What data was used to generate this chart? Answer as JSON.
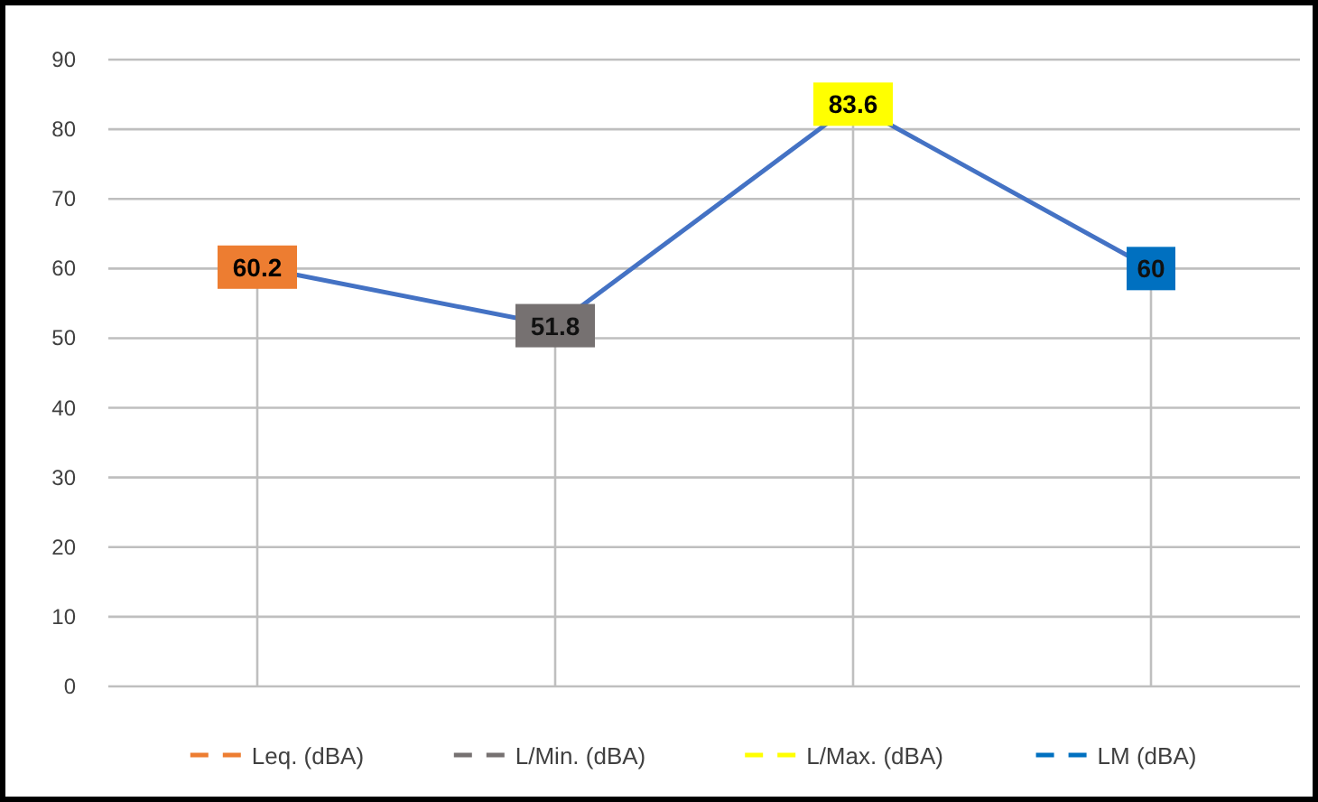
{
  "chart_data": {
    "type": "line",
    "categories": [
      null,
      null,
      null,
      null
    ],
    "ylim": [
      0,
      90
    ],
    "yticks": [
      0,
      10,
      20,
      30,
      40,
      50,
      60,
      70,
      80,
      90
    ],
    "grid": "y",
    "legend": "bottom",
    "series": [
      {
        "color": "#4472c4",
        "values": [
          60.2,
          51.8,
          83.6,
          60
        ]
      },
      {
        "type": "lollipop",
        "marker": "square",
        "name": "Leq. (dBA)",
        "color": "#ed7d31",
        "values": [
          60.2,
          null,
          null,
          null
        ],
        "value_labels": [
          "60.2",
          null,
          null,
          null
        ]
      },
      {
        "type": "lollipop",
        "marker": "square",
        "name": "L/Min. (dBA)",
        "color": "#767171",
        "values": [
          null,
          51.8,
          null,
          null
        ],
        "value_labels": [
          null,
          "51.8",
          null,
          null
        ]
      },
      {
        "type": "lollipop",
        "marker": "square",
        "name": "L/Max. (dBA)",
        "color": "#ffff00",
        "values": [
          null,
          null,
          83.6,
          null
        ],
        "value_labels": [
          null,
          null,
          "83.6",
          null
        ]
      },
      {
        "type": "lollipop",
        "marker": "square",
        "name": "LM (dBA)",
        "color": "#0070c0",
        "values": [
          null,
          null,
          null,
          60
        ],
        "value_labels": [
          null,
          null,
          null,
          "60"
        ]
      }
    ]
  }
}
